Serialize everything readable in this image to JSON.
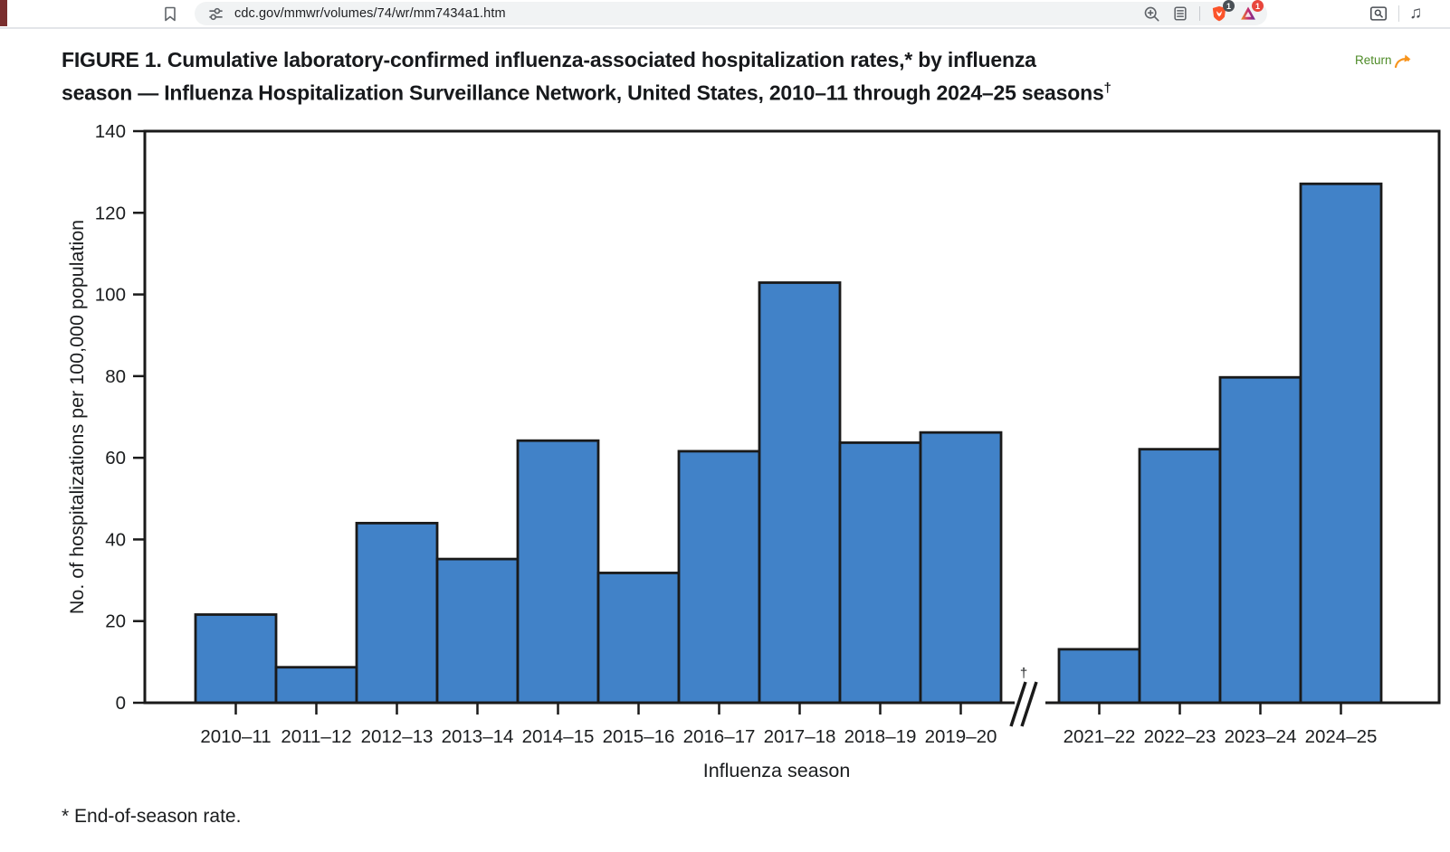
{
  "browser": {
    "url": "cdc.gov/mmwr/volumes/74/wr/mm7434a1.htm",
    "shield_badge": "1",
    "rewards_badge": "1",
    "icons": {
      "bookmark": "bookmark-icon",
      "site_settings": "tune-icon",
      "zoom_in": "magnifier-plus-icon",
      "reader_mode": "reader-mode-icon",
      "brave_shields": "shield-icon",
      "brave_rewards": "triangle-icon",
      "find_in_page": "search-panel-icon",
      "media": "♫"
    }
  },
  "figure": {
    "title_line1": "FIGURE 1. Cumulative laboratory-confirmed influenza-associated hospitalization rates,* by influenza",
    "title_line2": "season — Influenza Hospitalization Surveillance Network, United States, 2010–11 through 2024–25 seasons",
    "title_sup": "†",
    "return_label": "Return",
    "footnote": "* End-of-season rate."
  },
  "chart_data": {
    "type": "bar",
    "title": "",
    "categories": [
      "2010–11",
      "2011–12",
      "2012–13",
      "2013–14",
      "2014–15",
      "2015–16",
      "2016–17",
      "2017–18",
      "2018–19",
      "2019–20",
      "2021–22",
      "2022–23",
      "2023–24",
      "2024–25"
    ],
    "values": [
      21.6,
      8.7,
      44.0,
      35.2,
      64.2,
      31.8,
      61.6,
      102.9,
      63.7,
      66.2,
      13.1,
      62.1,
      79.7,
      127.1
    ],
    "xlabel": "Influenza season",
    "ylabel": "No. of hospitalizations per 100,000 population",
    "ylim": [
      0,
      140
    ],
    "yticks": [
      0,
      20,
      40,
      60,
      80,
      100,
      120,
      140
    ],
    "grid": false,
    "legend": null,
    "bar_color": "#4182C8",
    "bar_edge_color": "#1a1a1a",
    "axis_color": "#1a1a1a",
    "axis_break": {
      "after_category": "2019–20",
      "symbol": "//",
      "note_symbol": "†"
    }
  },
  "colors": {
    "return_green": "#4e8b27",
    "return_arrow_orange": "#f7941d",
    "shield_orange": "#fb542b",
    "badge_dark": "#4a5056",
    "badge_red": "#e8463c",
    "edge_accent": "#7a2e2e"
  }
}
